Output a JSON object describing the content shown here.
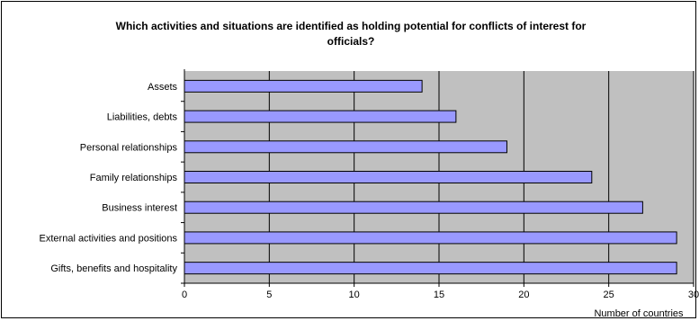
{
  "chart_data": {
    "type": "bar",
    "orientation": "horizontal",
    "title": "Which activities and situations are identified as holding potential for conflicts of interest for\nofficials?",
    "xlabel": "Number of countries",
    "ylabel": "",
    "categories": [
      "Assets",
      "Liabilities, debts",
      "Personal relationships",
      "Family relationships",
      "Business interest",
      "External activities and positions",
      "Gifts, benefits and hospitality"
    ],
    "values": [
      14,
      16,
      19,
      24,
      27,
      29,
      29
    ],
    "xlim": [
      0,
      30
    ],
    "xticks": [
      "0",
      "5",
      "10",
      "15",
      "20",
      "25",
      "30"
    ],
    "grid": "vertical",
    "legend": "none",
    "colors": {
      "bar": "#9999ff",
      "plot_background": "#c0c0c0",
      "gridline": "#000000"
    }
  }
}
